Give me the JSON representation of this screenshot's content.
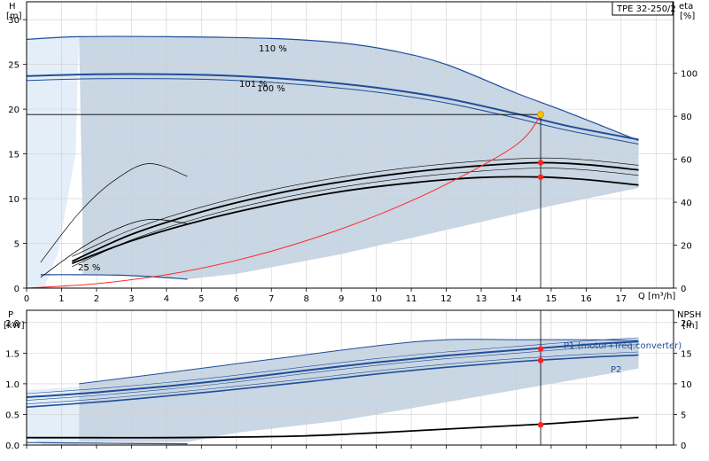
{
  "chart_data": [
    {
      "type": "line",
      "title": "TPE 32-250/2",
      "xlabel": "Q [m³/h]",
      "ylabel": "H",
      "ylabel_unit": "[m]",
      "y2label": "eta",
      "y2label_unit": "[%]",
      "xlim": [
        0,
        18.5
      ],
      "ylim": [
        0,
        32
      ],
      "y2lim": [
        0,
        133.3
      ],
      "xticks": [
        "0",
        "1",
        "2",
        "3",
        "4",
        "5",
        "6",
        "7",
        "8",
        "9",
        "10",
        "11",
        "12",
        "13",
        "14",
        "15",
        "16",
        "17"
      ],
      "yticks": [
        "0",
        "5",
        "10",
        "15",
        "20",
        "25",
        "30"
      ],
      "y2ticks": [
        "0",
        "20",
        "40",
        "60",
        "80",
        "100"
      ],
      "colors": {
        "band": "#c9d6e3",
        "light_band": "#e4eef8",
        "curve": "#1f4e99",
        "system": "#ff2a2a",
        "duty": "#ffc000",
        "point": "#ff2020"
      },
      "curve_labels": [
        "110 %",
        "101 %",
        "100 %",
        "25 %"
      ],
      "series": [
        {
          "name": "110 %",
          "x": [
            0,
            1.5,
            4,
            7,
            9,
            10.5,
            12,
            14,
            15.5,
            17.5
          ],
          "y": [
            27.8,
            28.1,
            28.1,
            27.9,
            27.4,
            26.5,
            25.0,
            21.8,
            19.6,
            16.5
          ]
        },
        {
          "name": "101 %",
          "x": [
            0,
            2,
            4,
            6,
            8,
            10,
            12,
            14,
            15.5,
            17.5
          ],
          "y": [
            23.7,
            23.9,
            23.9,
            23.7,
            23.2,
            22.4,
            21.2,
            19.5,
            18.1,
            16.6
          ]
        },
        {
          "name": "100 %",
          "x": [
            0,
            2,
            4,
            6,
            8,
            10,
            12,
            14,
            15.5,
            17.5
          ],
          "y": [
            23.2,
            23.4,
            23.4,
            23.2,
            22.7,
            21.9,
            20.7,
            19.0,
            17.6,
            16.1
          ]
        },
        {
          "name": "25 %",
          "x": [
            0.4,
            1.5,
            3.0,
            4.6
          ],
          "y": [
            1.5,
            1.5,
            1.4,
            1.0
          ]
        },
        {
          "name": "eta",
          "x": [
            1.3,
            3,
            5,
            7,
            9,
            11,
            13,
            14.7,
            16,
            17.5
          ],
          "y2": [
            12.5,
            25,
            35.5,
            43.5,
            49.5,
            54,
            57,
            58.4,
            57.5,
            55
          ]
        },
        {
          "name": "eta-100",
          "x": [
            1.3,
            3,
            5,
            7,
            9,
            11,
            13,
            14.7,
            16,
            17.5
          ],
          "y2": [
            11.5,
            22,
            31.5,
            39,
            45,
            49,
            51.5,
            51.7,
            50.5,
            48
          ]
        },
        {
          "name": "system",
          "x": [
            0,
            2,
            4,
            6,
            8,
            10,
            12,
            14,
            14.7
          ],
          "y": [
            0,
            0.5,
            1.5,
            3.1,
            5.3,
            8.1,
            11.6,
            16.0,
            19.3
          ]
        }
      ],
      "duty_point": {
        "x": 14.7,
        "y": 19.4
      },
      "eta_points": [
        {
          "x": 14.7,
          "y2": 58.4
        },
        {
          "x": 14.7,
          "y2": 51.7
        }
      ]
    },
    {
      "type": "line",
      "ylabel": "P",
      "ylabel_unit": "[kW]",
      "y2label": "NPSH",
      "y2label_unit": "[m]",
      "xlim": [
        0,
        18.5
      ],
      "ylim": [
        0,
        2.2
      ],
      "y2lim": [
        0,
        22
      ],
      "yticks": [
        "0.0",
        "0.5",
        "1.0",
        "1.5",
        "2.0"
      ],
      "y2ticks": [
        "0",
        "5",
        "10",
        "15",
        "20"
      ],
      "series": [
        {
          "name": "P1 (motor+freq.converter)",
          "x": [
            0,
            2,
            4,
            6,
            8,
            10,
            12,
            14,
            16,
            17.5
          ],
          "y": [
            0.78,
            0.86,
            0.96,
            1.08,
            1.22,
            1.35,
            1.46,
            1.55,
            1.64,
            1.69
          ]
        },
        {
          "name": "P2",
          "x": [
            0,
            2,
            4,
            6,
            8,
            10,
            12,
            14,
            16,
            17.5
          ],
          "y": [
            0.62,
            0.7,
            0.8,
            0.91,
            1.03,
            1.16,
            1.27,
            1.36,
            1.43,
            1.47
          ]
        },
        {
          "name": "NPSH",
          "x": [
            0,
            2,
            4,
            6,
            8,
            10,
            12,
            14.7,
            16,
            17.5
          ],
          "y2": [
            1.2,
            1.2,
            1.2,
            1.3,
            1.5,
            2.0,
            2.6,
            3.4,
            3.9,
            4.5
          ]
        },
        {
          "name": "low-speed",
          "x": [
            0,
            2,
            4.6
          ],
          "y": [
            0.04,
            0.03,
            0.02
          ]
        }
      ],
      "duty_points": [
        {
          "x": 14.7,
          "y": 1.57
        },
        {
          "x": 14.7,
          "y": 1.38
        },
        {
          "x": 14.7,
          "y2": 3.3
        }
      ]
    }
  ]
}
